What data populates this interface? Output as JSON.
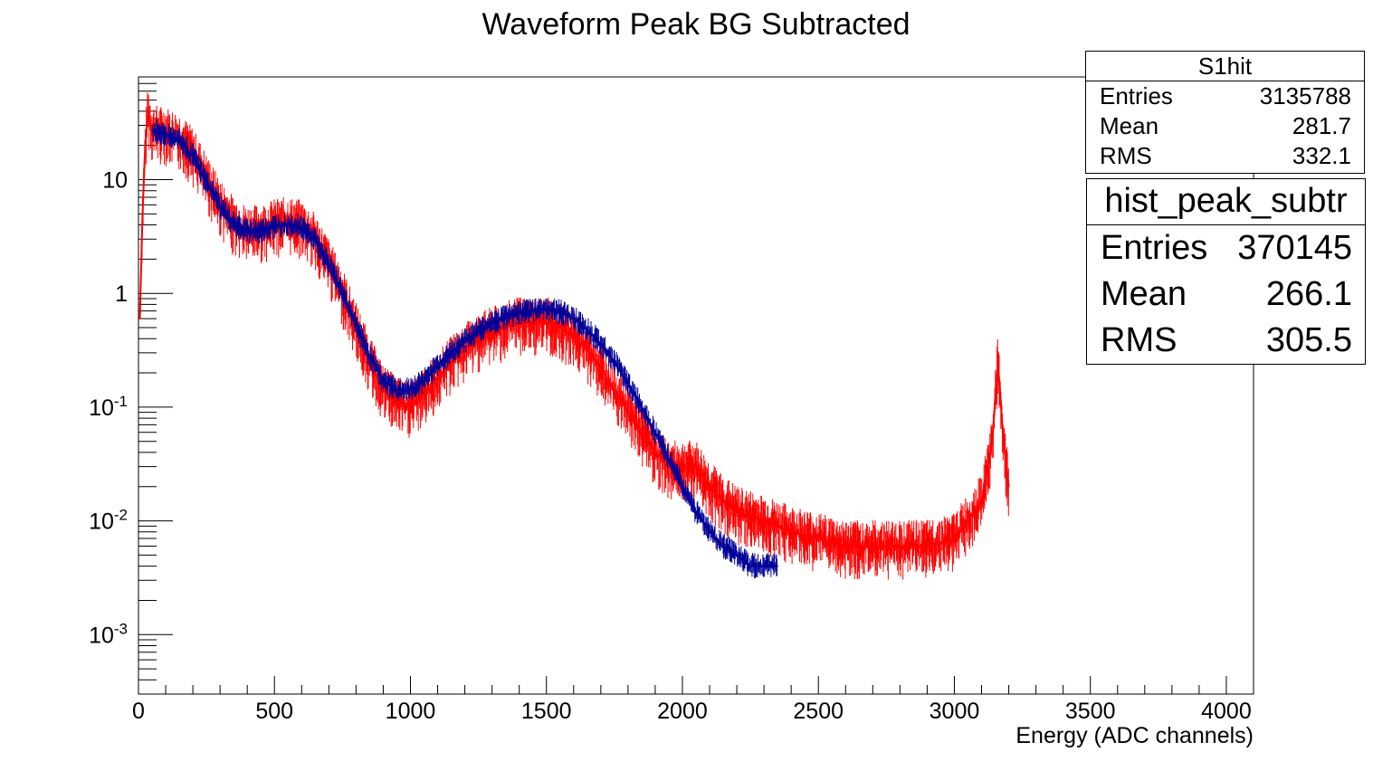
{
  "title": "Waveform Peak BG Subtracted",
  "stat_boxes": [
    {
      "name": "S1hit",
      "rows": [
        {
          "label": "Entries",
          "value": "3135788"
        },
        {
          "label": "Mean",
          "value": "281.7"
        },
        {
          "label": "RMS",
          "value": "332.1"
        }
      ]
    },
    {
      "name": "hist_peak_subtr",
      "rows": [
        {
          "label": "Entries",
          "value": "370145"
        },
        {
          "label": "Mean",
          "value": "266.1"
        },
        {
          "label": "RMS",
          "value": "305.5"
        }
      ]
    }
  ],
  "chart_data": {
    "type": "line",
    "title": "Waveform Peak BG Subtracted",
    "xlabel": "Energy (ADC channels)",
    "ylabel": "",
    "xlim": [
      0,
      4100
    ],
    "ylim": [
      0.0003,
      80
    ],
    "y_log_scale": true,
    "grid": false,
    "x_ticks": [
      0,
      500,
      1000,
      1500,
      2000,
      2500,
      3000,
      3500,
      4000
    ],
    "y_tick_labels": [
      {
        "value": 0.001,
        "base": "10",
        "exp": "-3"
      },
      {
        "value": 0.01,
        "base": "10",
        "exp": "-2"
      },
      {
        "value": 0.1,
        "base": "10",
        "exp": "-1"
      },
      {
        "value": 1,
        "base": "1",
        "exp": ""
      },
      {
        "value": 10,
        "base": "10",
        "exp": ""
      }
    ],
    "series": [
      {
        "color": "#ff0000",
        "x": [
          5,
          15,
          25,
          35,
          50,
          100,
          150,
          200,
          250,
          300,
          350,
          400,
          450,
          500,
          550,
          600,
          650,
          700,
          750,
          800,
          850,
          900,
          950,
          1000,
          1050,
          1100,
          1150,
          1200,
          1250,
          1300,
          1350,
          1400,
          1450,
          1500,
          1550,
          1600,
          1650,
          1700,
          1750,
          1800,
          1850,
          1900,
          1950,
          2000,
          2050,
          2100,
          2150,
          2200,
          2300,
          2400,
          2500,
          2600,
          2700,
          2800,
          2900,
          3000,
          3100,
          3140,
          3150,
          3160,
          3170,
          3180,
          3200
        ],
        "y": [
          0.6,
          5,
          20,
          40,
          27,
          26,
          23,
          17,
          10,
          6,
          4.2,
          3.5,
          3.6,
          4,
          4.2,
          3.9,
          3,
          1.8,
          1,
          0.5,
          0.25,
          0.14,
          0.11,
          0.1,
          0.13,
          0.18,
          0.25,
          0.32,
          0.4,
          0.45,
          0.5,
          0.55,
          0.55,
          0.55,
          0.5,
          0.42,
          0.32,
          0.22,
          0.14,
          0.09,
          0.06,
          0.04,
          0.03,
          0.03,
          0.03,
          0.02,
          0.015,
          0.012,
          0.01,
          0.008,
          0.007,
          0.006,
          0.006,
          0.006,
          0.006,
          0.007,
          0.015,
          0.05,
          0.12,
          0.25,
          0.12,
          0.05,
          0.02
        ]
      },
      {
        "color": "#000099",
        "x": [
          50,
          100,
          150,
          200,
          250,
          300,
          350,
          400,
          450,
          500,
          550,
          600,
          650,
          700,
          750,
          800,
          850,
          900,
          950,
          1000,
          1050,
          1100,
          1150,
          1200,
          1250,
          1300,
          1350,
          1400,
          1450,
          1500,
          1550,
          1600,
          1650,
          1700,
          1750,
          1800,
          1850,
          1900,
          1950,
          2000,
          2050,
          2100,
          2150,
          2200,
          2250,
          2300,
          2350
        ],
        "y": [
          27,
          25,
          22,
          16,
          9.5,
          5.8,
          4,
          3.5,
          3.5,
          3.8,
          4.1,
          3.8,
          2.9,
          1.8,
          1,
          0.52,
          0.28,
          0.17,
          0.14,
          0.14,
          0.17,
          0.23,
          0.3,
          0.38,
          0.46,
          0.55,
          0.62,
          0.66,
          0.7,
          0.72,
          0.68,
          0.6,
          0.48,
          0.36,
          0.25,
          0.16,
          0.1,
          0.06,
          0.035,
          0.02,
          0.012,
          0.008,
          0.006,
          0.005,
          0.004,
          0.004,
          0.004
        ]
      }
    ]
  }
}
